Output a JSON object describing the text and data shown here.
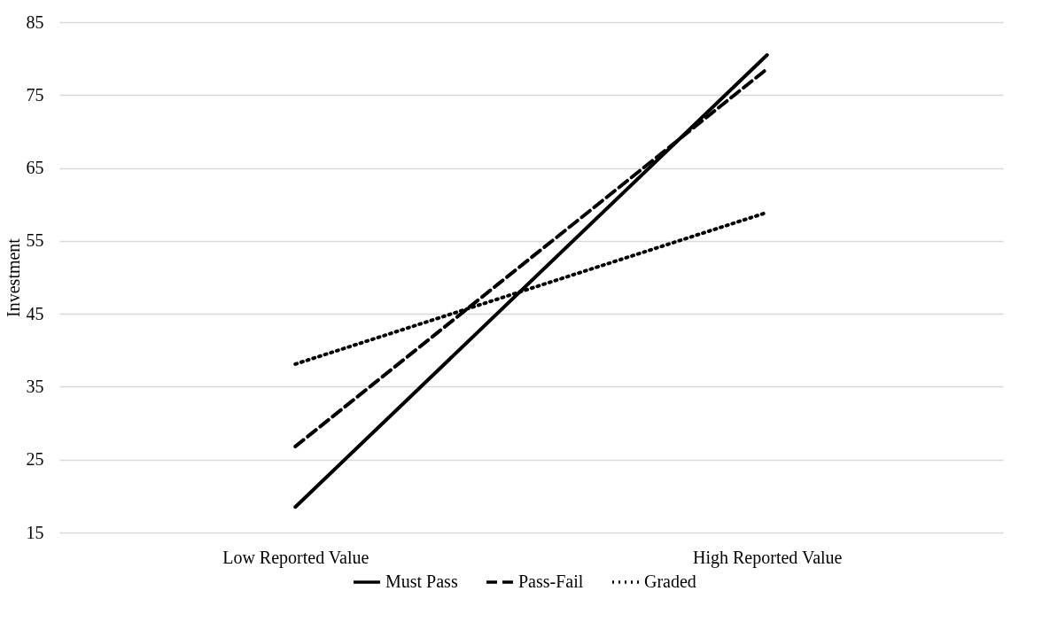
{
  "chart_data": {
    "type": "line",
    "ylabel": "Investment",
    "categories": [
      "Low Reported Value",
      "High Reported Value"
    ],
    "series": [
      {
        "name": "Must Pass",
        "color": "#000000",
        "line_style": "solid",
        "values": [
          18.5,
          80.5
        ]
      },
      {
        "name": "Pass-Fail",
        "color": "#000000",
        "line_style": "dashed",
        "values": [
          26.8,
          78.6
        ]
      },
      {
        "name": "Graded",
        "color": "#000000",
        "line_style": "dotted",
        "values": [
          38.1,
          58.9
        ]
      }
    ],
    "ylim": [
      15,
      85
    ],
    "yticks": [
      15,
      25,
      35,
      45,
      55,
      65,
      75,
      85
    ],
    "grid": "y",
    "legend": "bottom",
    "marker": "none"
  }
}
